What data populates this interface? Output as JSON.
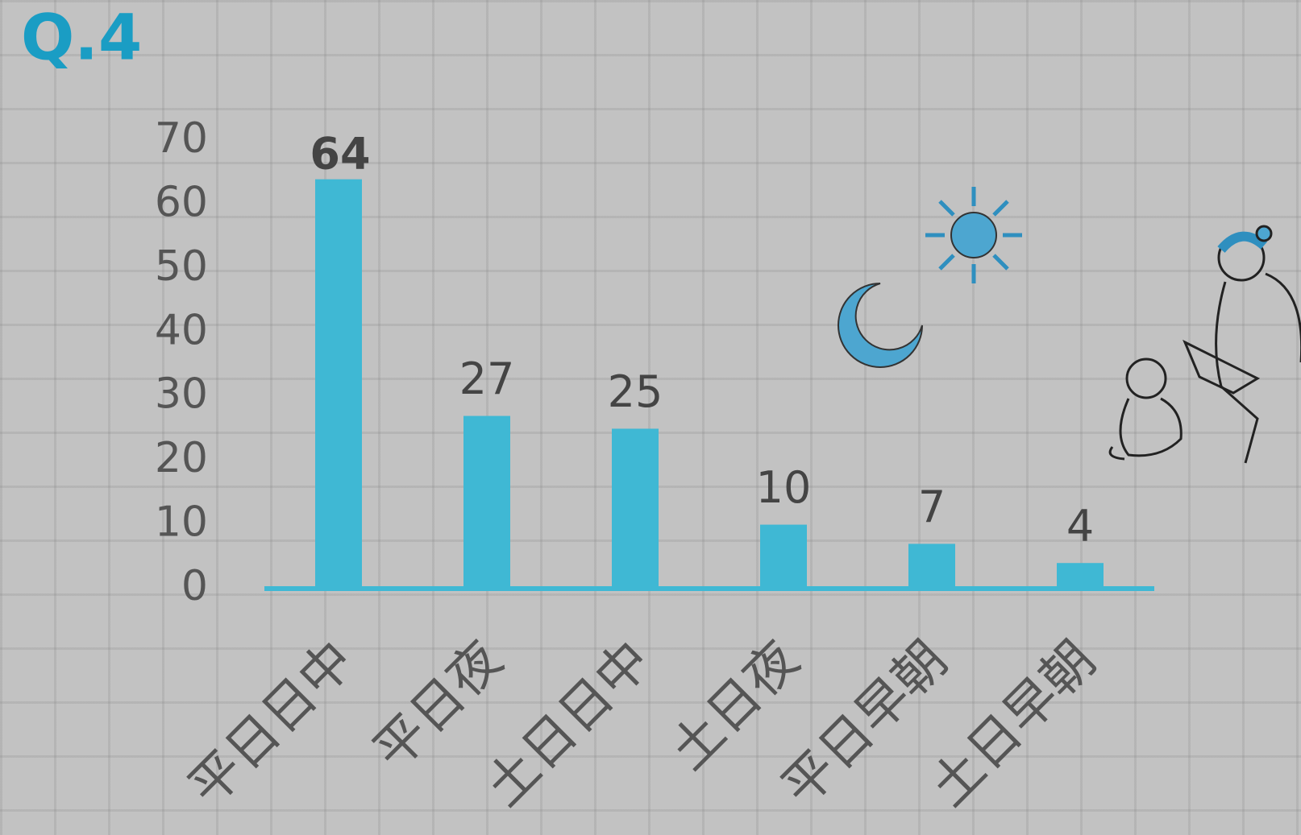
{
  "chart_data": {
    "type": "bar",
    "title": "Q.4",
    "categories": [
      "平日日中",
      "平日夜",
      "土日日中",
      "土日夜",
      "平日早朝",
      "土日早朝"
    ],
    "values": [
      64,
      27,
      25,
      10,
      7,
      4
    ],
    "color": "#3fb8d4",
    "ylim": [
      0,
      70
    ],
    "yticks": [
      0,
      10,
      20,
      30,
      40,
      50,
      60,
      70
    ],
    "grid": false
  }
}
